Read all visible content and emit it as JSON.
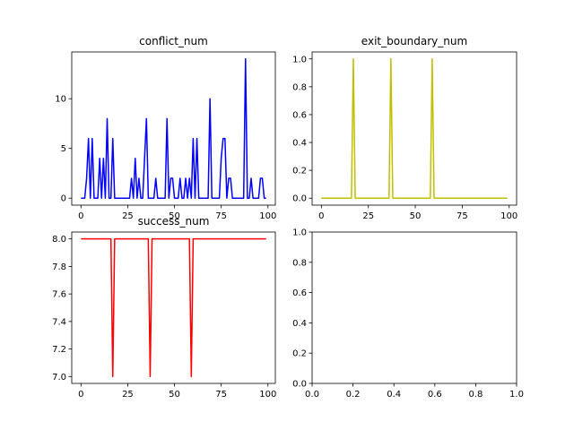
{
  "chart_data": [
    {
      "type": "line",
      "title": "conflict_num",
      "color": "#0000ff",
      "x": [
        0,
        1,
        2,
        3,
        4,
        5,
        6,
        7,
        8,
        9,
        10,
        11,
        12,
        13,
        14,
        15,
        16,
        17,
        18,
        19,
        20,
        21,
        22,
        23,
        24,
        25,
        26,
        27,
        28,
        29,
        30,
        31,
        32,
        33,
        34,
        35,
        36,
        37,
        38,
        39,
        40,
        41,
        42,
        43,
        44,
        45,
        46,
        47,
        48,
        49,
        50,
        51,
        52,
        53,
        54,
        55,
        56,
        57,
        58,
        59,
        60,
        61,
        62,
        63,
        64,
        65,
        66,
        67,
        68,
        69,
        70,
        71,
        72,
        73,
        74,
        75,
        76,
        77,
        78,
        79,
        80,
        81,
        82,
        83,
        84,
        85,
        86,
        87,
        88,
        89,
        90,
        91,
        92,
        93,
        94,
        95,
        96,
        97,
        98,
        99
      ],
      "values": [
        0,
        0,
        0,
        2,
        6,
        0,
        6,
        0,
        0,
        0,
        4,
        0,
        4,
        0,
        8,
        0,
        0,
        6,
        0,
        0,
        0,
        0,
        0,
        0,
        0,
        0,
        0,
        2,
        0,
        4,
        0,
        2,
        0,
        0,
        4,
        8,
        0,
        0,
        0,
        0,
        2,
        0,
        0,
        0,
        0,
        0,
        8,
        0,
        2,
        2,
        0,
        0,
        0,
        2,
        0,
        0,
        2,
        0,
        2,
        0,
        6,
        0,
        6,
        0,
        0,
        0,
        0,
        0,
        0,
        10,
        0,
        0,
        0,
        0,
        0,
        4,
        6,
        6,
        0,
        2,
        2,
        0,
        0,
        0,
        0,
        0,
        0,
        0,
        14,
        0,
        0,
        2,
        0,
        0,
        0,
        0,
        2,
        2,
        0,
        0
      ],
      "xlim": [
        -4.95,
        103.95
      ],
      "ylim": [
        -0.7,
        14.7
      ],
      "xticks": [
        0,
        25,
        50,
        75,
        100
      ],
      "yticks": [
        0,
        5,
        10
      ],
      "xticklabels": [
        "0",
        "25",
        "50",
        "75",
        "100"
      ],
      "yticklabels": [
        "0",
        "5",
        "10"
      ]
    },
    {
      "type": "line",
      "title": "exit_boundary_num",
      "color": "#bfbf00",
      "x": [
        0,
        1,
        2,
        3,
        4,
        5,
        6,
        7,
        8,
        9,
        10,
        11,
        12,
        13,
        14,
        15,
        16,
        17,
        18,
        19,
        20,
        21,
        22,
        23,
        24,
        25,
        26,
        27,
        28,
        29,
        30,
        31,
        32,
        33,
        34,
        35,
        36,
        37,
        38,
        39,
        40,
        41,
        42,
        43,
        44,
        45,
        46,
        47,
        48,
        49,
        50,
        51,
        52,
        53,
        54,
        55,
        56,
        57,
        58,
        59,
        60,
        61,
        62,
        63,
        64,
        65,
        66,
        67,
        68,
        69,
        70,
        71,
        72,
        73,
        74,
        75,
        76,
        77,
        78,
        79,
        80,
        81,
        82,
        83,
        84,
        85,
        86,
        87,
        88,
        89,
        90,
        91,
        92,
        93,
        94,
        95,
        96,
        97,
        98,
        99
      ],
      "values": [
        0,
        0,
        0,
        0,
        0,
        0,
        0,
        0,
        0,
        0,
        0,
        0,
        0,
        0,
        0,
        0,
        0,
        1,
        0,
        0,
        0,
        0,
        0,
        0,
        0,
        0,
        0,
        0,
        0,
        0,
        0,
        0,
        0,
        0,
        0,
        0,
        0,
        1,
        0,
        0,
        0,
        0,
        0,
        0,
        0,
        0,
        0,
        0,
        0,
        0,
        0,
        0,
        0,
        0,
        0,
        0,
        0,
        0,
        0,
        1,
        0,
        0,
        0,
        0,
        0,
        0,
        0,
        0,
        0,
        0,
        0,
        0,
        0,
        0,
        0,
        0,
        0,
        0,
        0,
        0,
        0,
        0,
        0,
        0,
        0,
        0,
        0,
        0,
        0,
        0,
        0,
        0,
        0,
        0,
        0,
        0,
        0,
        0,
        0,
        0
      ],
      "xlim": [
        -4.95,
        103.95
      ],
      "ylim": [
        -0.05,
        1.05
      ],
      "xticks": [
        0,
        25,
        50,
        75,
        100
      ],
      "yticks": [
        0,
        0.2,
        0.4,
        0.6,
        0.8,
        1.0
      ],
      "xticklabels": [
        "0",
        "25",
        "50",
        "75",
        "100"
      ],
      "yticklabels": [
        "0.0",
        "0.2",
        "0.4",
        "0.6",
        "0.8",
        "1.0"
      ]
    },
    {
      "type": "line",
      "title": "success_num",
      "color": "#ff0000",
      "x": [
        0,
        1,
        2,
        3,
        4,
        5,
        6,
        7,
        8,
        9,
        10,
        11,
        12,
        13,
        14,
        15,
        16,
        17,
        18,
        19,
        20,
        21,
        22,
        23,
        24,
        25,
        26,
        27,
        28,
        29,
        30,
        31,
        32,
        33,
        34,
        35,
        36,
        37,
        38,
        39,
        40,
        41,
        42,
        43,
        44,
        45,
        46,
        47,
        48,
        49,
        50,
        51,
        52,
        53,
        54,
        55,
        56,
        57,
        58,
        59,
        60,
        61,
        62,
        63,
        64,
        65,
        66,
        67,
        68,
        69,
        70,
        71,
        72,
        73,
        74,
        75,
        76,
        77,
        78,
        79,
        80,
        81,
        82,
        83,
        84,
        85,
        86,
        87,
        88,
        89,
        90,
        91,
        92,
        93,
        94,
        95,
        96,
        97,
        98,
        99
      ],
      "values": [
        8,
        8,
        8,
        8,
        8,
        8,
        8,
        8,
        8,
        8,
        8,
        8,
        8,
        8,
        8,
        8,
        8,
        7,
        8,
        8,
        8,
        8,
        8,
        8,
        8,
        8,
        8,
        8,
        8,
        8,
        8,
        8,
        8,
        8,
        8,
        8,
        8,
        7,
        8,
        8,
        8,
        8,
        8,
        8,
        8,
        8,
        8,
        8,
        8,
        8,
        8,
        8,
        8,
        8,
        8,
        8,
        8,
        8,
        8,
        7,
        8,
        8,
        8,
        8,
        8,
        8,
        8,
        8,
        8,
        8,
        8,
        8,
        8,
        8,
        8,
        8,
        8,
        8,
        8,
        8,
        8,
        8,
        8,
        8,
        8,
        8,
        8,
        8,
        8,
        8,
        8,
        8,
        8,
        8,
        8,
        8,
        8,
        8,
        8,
        8
      ],
      "xlim": [
        -4.95,
        103.95
      ],
      "ylim": [
        6.95,
        8.05
      ],
      "xticks": [
        0,
        25,
        50,
        75,
        100
      ],
      "yticks": [
        7.0,
        7.2,
        7.4,
        7.6,
        7.8,
        8.0
      ],
      "xticklabels": [
        "0",
        "25",
        "50",
        "75",
        "100"
      ],
      "yticklabels": [
        "7.0",
        "7.2",
        "7.4",
        "7.6",
        "7.8",
        "8.0"
      ]
    },
    {
      "type": "line",
      "title": "",
      "color": "#000000",
      "x": [],
      "values": [],
      "xlim": [
        0,
        1
      ],
      "ylim": [
        0,
        1
      ],
      "xticks": [
        0,
        0.2,
        0.4,
        0.6,
        0.8,
        1.0
      ],
      "yticks": [
        0,
        0.2,
        0.4,
        0.6,
        0.8,
        1.0
      ],
      "xticklabels": [
        "0.0",
        "0.2",
        "0.4",
        "0.6",
        "0.8",
        "1.0"
      ],
      "yticklabels": [
        "0.0",
        "0.2",
        "0.4",
        "0.6",
        "0.8",
        "1.0"
      ]
    }
  ]
}
